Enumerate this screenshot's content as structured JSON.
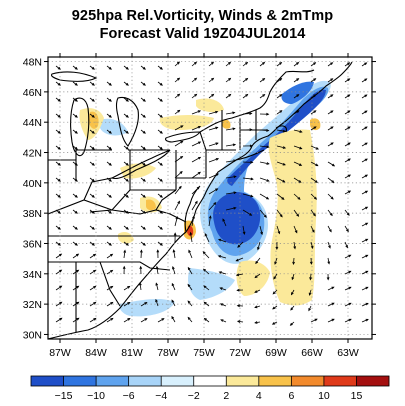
{
  "title_line1": "925hpa Rel.Vorticity, Winds & 2mTmp",
  "title_line2": "Forecast Valid 19Z04JUL2014",
  "map": {
    "lon_range": [
      -88,
      -61
    ],
    "lat_range": [
      29.7,
      48.3
    ],
    "lat_ticks": [
      "30N",
      "32N",
      "34N",
      "36N",
      "38N",
      "40N",
      "42N",
      "44N",
      "46N",
      "48N"
    ],
    "lon_ticks": [
      "87W",
      "84W",
      "81W",
      "78W",
      "75W",
      "72W",
      "69W",
      "66W",
      "63W"
    ],
    "gridlines": "dotted"
  },
  "colorbar": {
    "tick_labels": [
      "−15",
      "−10",
      "−6",
      "−4",
      "−2",
      "2",
      "4",
      "6",
      "10",
      "15"
    ],
    "colors": [
      "#1f4fc8",
      "#2f74e0",
      "#5fa3ee",
      "#a8d4f8",
      "#d8f0fd",
      "#ffffff",
      "#fbe99a",
      "#f8c24a",
      "#f28a2c",
      "#df3a1a",
      "#a40f0f"
    ]
  },
  "colors": {
    "land": "#ffffff",
    "coast": "#000000",
    "vort_neg_strong": "#1f4fc8",
    "vort_neg": "#5fa3ee",
    "vort_neg_weak": "#b4dcfa",
    "vort_pos_weak": "#fbe99a",
    "vort_pos": "#f8c24a",
    "vort_pos_strong": "#df3a1a"
  }
}
